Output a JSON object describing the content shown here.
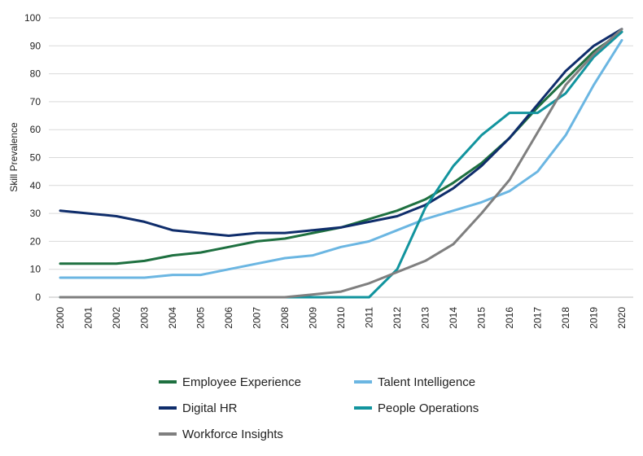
{
  "chart_data": {
    "type": "line",
    "title": "",
    "xlabel": "",
    "ylabel": "Skill Prevalence",
    "ylim": [
      0,
      100
    ],
    "yticks": [
      "0",
      "10",
      "20",
      "30",
      "40",
      "50",
      "60",
      "70",
      "80",
      "90",
      "100"
    ],
    "grid": true,
    "legend_position": "bottom",
    "x": [
      "2000",
      "2001",
      "2002",
      "2003",
      "2004",
      "2005",
      "2006",
      "2007",
      "2008",
      "2009",
      "2010",
      "2011",
      "2012",
      "2013",
      "2014",
      "2015",
      "2016",
      "2017",
      "2018",
      "2019",
      "2020"
    ],
    "series": [
      {
        "name": "Employee Experience",
        "color": "#1e7040",
        "values": [
          12,
          12,
          12,
          13,
          15,
          16,
          18,
          20,
          21,
          23,
          25,
          28,
          31,
          35,
          41,
          48,
          57,
          68,
          78,
          88,
          95
        ]
      },
      {
        "name": "Talent Intelligence",
        "color": "#6bb6e2",
        "values": [
          7,
          7,
          7,
          7,
          8,
          8,
          10,
          12,
          14,
          15,
          18,
          20,
          24,
          28,
          31,
          34,
          38,
          45,
          58,
          76,
          92
        ]
      },
      {
        "name": "Digital HR",
        "color": "#0f2d6b",
        "values": [
          31,
          30,
          29,
          27,
          24,
          23,
          22,
          23,
          23,
          24,
          25,
          27,
          29,
          33,
          39,
          47,
          57,
          69,
          81,
          90,
          96
        ]
      },
      {
        "name": "People Operations",
        "color": "#12949e",
        "values": [
          0,
          0,
          0,
          0,
          0,
          0,
          0,
          0,
          0,
          0,
          0,
          0,
          10,
          32,
          47,
          58,
          66,
          66,
          73,
          86,
          95
        ]
      },
      {
        "name": "Workforce Insights",
        "color": "#7f7f7f",
        "values": [
          0,
          0,
          0,
          0,
          0,
          0,
          0,
          0,
          0,
          1,
          2,
          5,
          9,
          13,
          19,
          30,
          42,
          59,
          76,
          87,
          96
        ]
      }
    ],
    "legend_order": [
      "Employee Experience",
      "Talent Intelligence",
      "Digital HR",
      "People Operations",
      "Workforce Insights"
    ]
  }
}
